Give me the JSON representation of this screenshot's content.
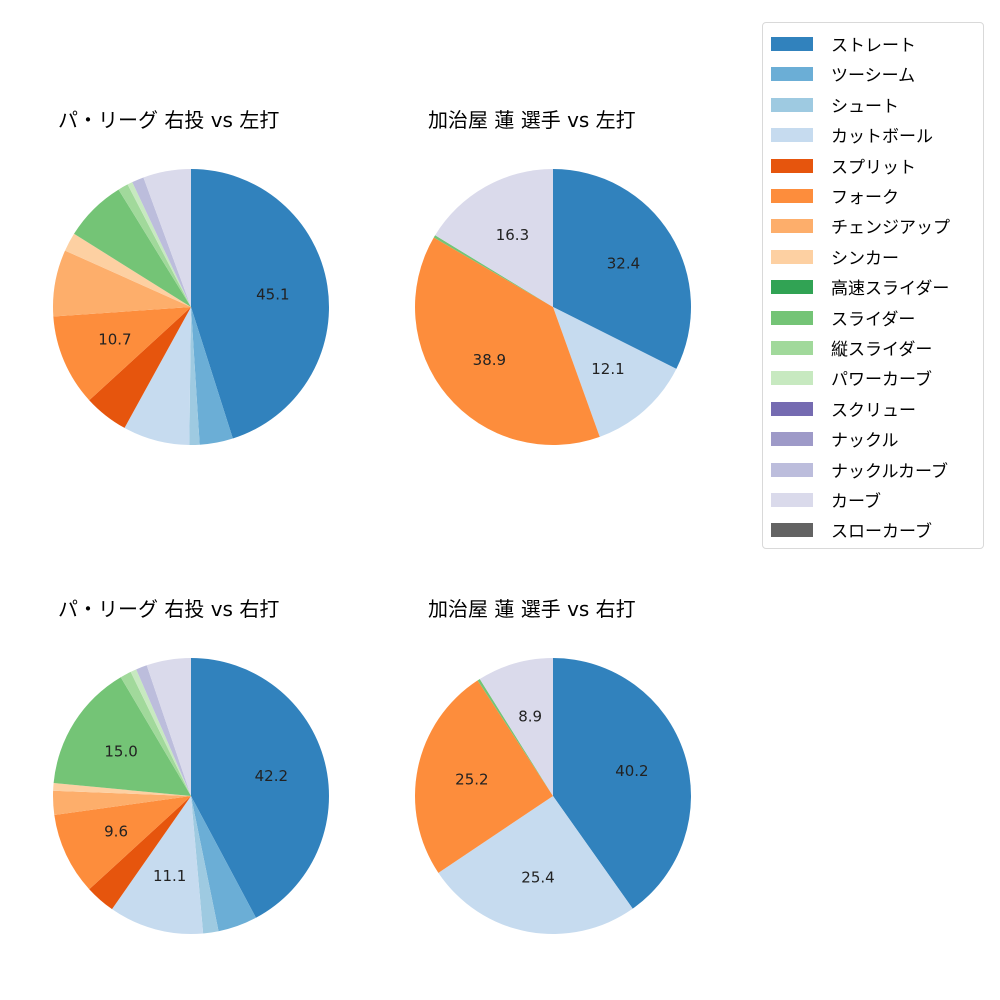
{
  "chart_data": [
    {
      "type": "pie",
      "title": "パ・リーグ 右投 vs 左打",
      "categories": [
        "ストレート",
        "ツーシーム",
        "シュート",
        "カットボール",
        "スプリット",
        "フォーク",
        "チェンジアップ",
        "シンカー",
        "高速スライダー",
        "スライダー",
        "縦スライダー",
        "パワーカーブ",
        "スクリュー",
        "ナックル",
        "ナックルカーブ",
        "カーブ",
        "スローカーブ"
      ],
      "values": [
        45.1,
        3.9,
        1.2,
        7.8,
        5.2,
        10.7,
        7.8,
        2.2,
        0.0,
        7.3,
        1.2,
        0.6,
        0.0,
        0.0,
        1.4,
        5.6,
        0.0
      ],
      "labeled_values": [
        45.1,
        10.7
      ],
      "start_angle": 90,
      "direction": "clockwise"
    },
    {
      "type": "pie",
      "title": "加治屋 蓮 選手 vs 左打",
      "categories": [
        "ストレート",
        "ツーシーム",
        "シュート",
        "カットボール",
        "スプリット",
        "フォーク",
        "チェンジアップ",
        "シンカー",
        "高速スライダー",
        "スライダー",
        "縦スライダー",
        "パワーカーブ",
        "スクリュー",
        "ナックル",
        "ナックルカーブ",
        "カーブ",
        "スローカーブ"
      ],
      "values": [
        32.4,
        0.0,
        0.0,
        12.1,
        0.0,
        38.9,
        0.0,
        0.0,
        0.0,
        0.3,
        0.0,
        0.0,
        0.0,
        0.0,
        0.0,
        16.3,
        0.0
      ],
      "labeled_values": [
        32.4,
        12.1,
        38.9,
        16.3
      ],
      "start_angle": 90,
      "direction": "clockwise"
    },
    {
      "type": "pie",
      "title": "パ・リーグ 右投 vs 右打",
      "categories": [
        "ストレート",
        "ツーシーム",
        "シュート",
        "カットボール",
        "スプリット",
        "フォーク",
        "チェンジアップ",
        "シンカー",
        "高速スライダー",
        "スライダー",
        "縦スライダー",
        "パワーカーブ",
        "スクリュー",
        "ナックル",
        "ナックルカーブ",
        "カーブ",
        "スローカーブ"
      ],
      "values": [
        42.2,
        4.6,
        1.8,
        11.1,
        3.5,
        9.6,
        2.8,
        0.9,
        0.0,
        15.0,
        1.3,
        0.7,
        0.0,
        0.0,
        1.3,
        5.2,
        0.0
      ],
      "labeled_values": [
        42.2,
        11.1,
        9.6,
        15.0
      ],
      "start_angle": 90,
      "direction": "clockwise"
    },
    {
      "type": "pie",
      "title": "加治屋 蓮 選手 vs 右打",
      "categories": [
        "ストレート",
        "ツーシーム",
        "シュート",
        "カットボール",
        "スプリット",
        "フォーク",
        "チェンジアップ",
        "シンカー",
        "高速スライダー",
        "スライダー",
        "縦スライダー",
        "パワーカーブ",
        "スクリュー",
        "ナックル",
        "ナックルカーブ",
        "カーブ",
        "スローカーブ"
      ],
      "values": [
        40.2,
        0.0,
        0.0,
        25.4,
        0.0,
        25.2,
        0.0,
        0.0,
        0.0,
        0.3,
        0.0,
        0.0,
        0.0,
        0.0,
        0.0,
        8.9,
        0.0
      ],
      "labeled_values": [
        40.2,
        25.4,
        25.2,
        8.9
      ],
      "start_angle": 90,
      "direction": "clockwise"
    }
  ],
  "legend": {
    "items": [
      {
        "label": "ストレート",
        "color": "#3182bd"
      },
      {
        "label": "ツーシーム",
        "color": "#6baed6"
      },
      {
        "label": "シュート",
        "color": "#9ecae1"
      },
      {
        "label": "カットボール",
        "color": "#c6dbef"
      },
      {
        "label": "スプリット",
        "color": "#e6550d"
      },
      {
        "label": "フォーク",
        "color": "#fd8d3c"
      },
      {
        "label": "チェンジアップ",
        "color": "#fdae6b"
      },
      {
        "label": "シンカー",
        "color": "#fdd0a2"
      },
      {
        "label": "高速スライダー",
        "color": "#31a354"
      },
      {
        "label": "スライダー",
        "color": "#74c476"
      },
      {
        "label": "縦スライダー",
        "color": "#a1d99b"
      },
      {
        "label": "パワーカーブ",
        "color": "#c7e9c0"
      },
      {
        "label": "スクリュー",
        "color": "#756bb1"
      },
      {
        "label": "ナックル",
        "color": "#9e9ac8"
      },
      {
        "label": "ナックルカーブ",
        "color": "#bcbddc"
      },
      {
        "label": "カーブ",
        "color": "#dadaeb"
      },
      {
        "label": "スローカーブ",
        "color": "#636363"
      }
    ]
  },
  "panels": [
    {
      "title": "パ・リーグ 右投 vs 左打"
    },
    {
      "title": "加治屋 蓮 選手 vs 左打"
    },
    {
      "title": "パ・リーグ 右投 vs 右打"
    },
    {
      "title": "加治屋 蓮 選手 vs 右打"
    }
  ]
}
